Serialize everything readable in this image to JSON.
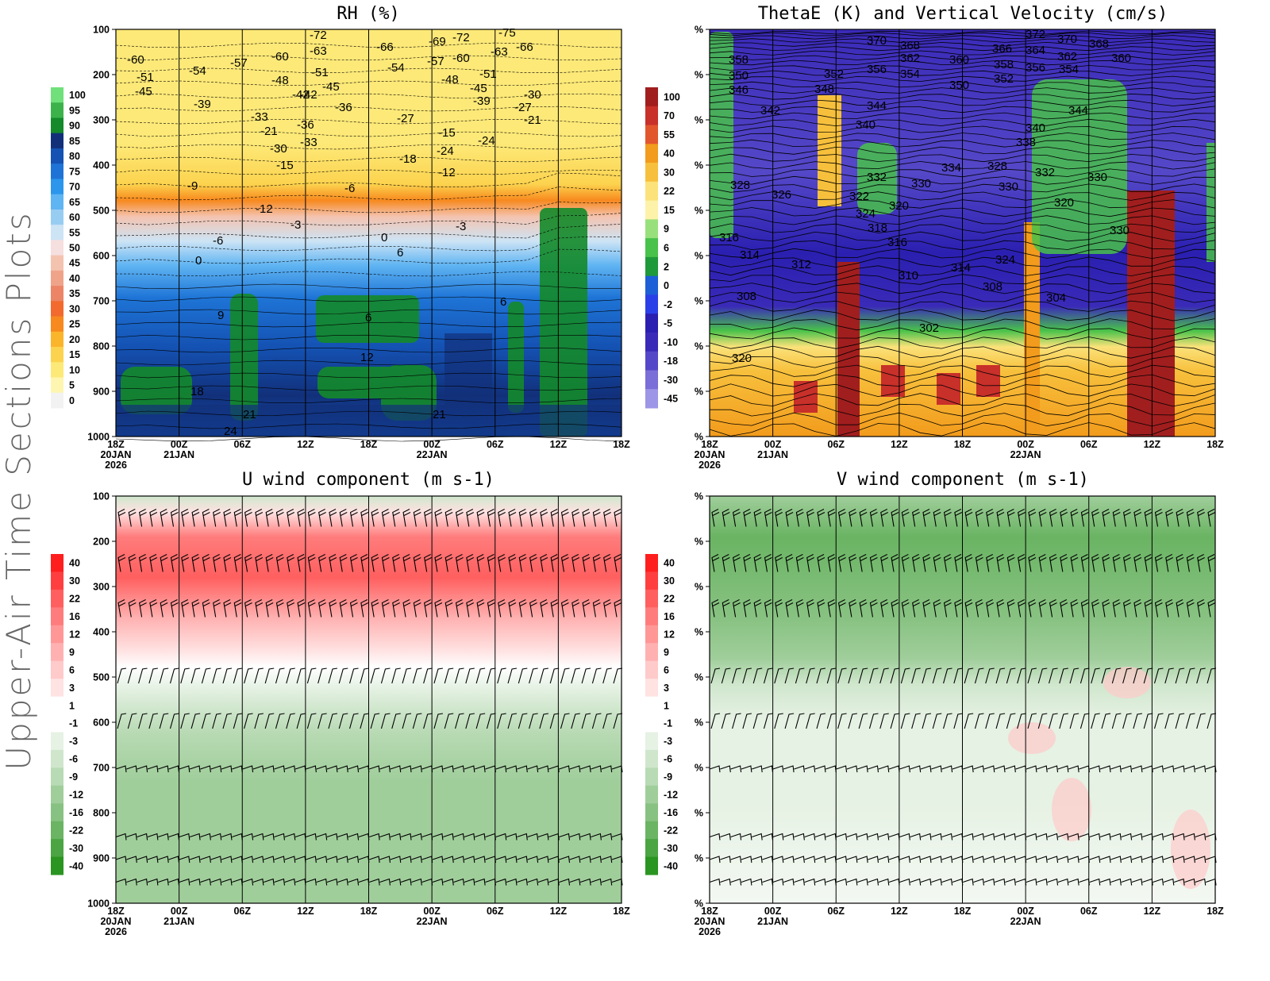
{
  "page": {
    "side_title": "Upper-Air Time Sections Plots"
  },
  "chart_data": [
    {
      "type": "heatmap",
      "title": "RH (%)",
      "xlabel": "",
      "ylabel": "",
      "x_ticks": [
        "18Z",
        "00Z",
        "06Z",
        "12Z",
        "18Z",
        "00Z",
        "06Z",
        "12Z",
        "18Z"
      ],
      "x_date_labels": [
        [
          "20JAN",
          "2026"
        ],
        [
          "21JAN"
        ],
        [],
        [],
        [],
        [
          "22JAN"
        ],
        [],
        [],
        []
      ],
      "y_ticks": [
        "100",
        "200",
        "300",
        "400",
        "500",
        "600",
        "700",
        "800",
        "900",
        "1000"
      ],
      "ylim": [
        100,
        1000
      ],
      "colorbar": [
        "100",
        "95",
        "90",
        "85",
        "80",
        "75",
        "70",
        "65",
        "60",
        "55",
        "50",
        "45",
        "40",
        "35",
        "30",
        "25",
        "20",
        "15",
        "10",
        "5",
        "0"
      ],
      "colorbar_colors": [
        "#6fe07a",
        "#3cb34a",
        "#148a2a",
        "#12307a",
        "#1452b3",
        "#1e74d6",
        "#2b96ec",
        "#5fb4f2",
        "#98cdf2",
        "#cde4f5",
        "#f6dfdf",
        "#f4c3b0",
        "#efa48a",
        "#eb8566",
        "#f26a2d",
        "#f7891e",
        "#fbb52b",
        "#fcd34e",
        "#fde978",
        "#fef6b0",
        "#f2f2f2"
      ],
      "contours": "Temperature (C)",
      "contour_labels": [
        "-60",
        "-51",
        "-45",
        "-54",
        "-57",
        "-60",
        "-48",
        "-72",
        "-63",
        "-51",
        "-45",
        "-42",
        "-66",
        "-54",
        "-69",
        "-57",
        "-72",
        "-60",
        "-75",
        "-63",
        "-66",
        "-48",
        "-51",
        "-45",
        "-39",
        "-42",
        "-36",
        "-30",
        "-39",
        "-33",
        "-27",
        "-21",
        "-15",
        "-30",
        "-24",
        "-36",
        "-33",
        "-27",
        "-21",
        "-24",
        "-18",
        "-15",
        "-12",
        "-9",
        "-12",
        "-6",
        "-3",
        "-6",
        "-3",
        "0",
        "0",
        "6",
        "9",
        "6",
        "6",
        "12",
        "18",
        "21",
        "24",
        "21"
      ]
    },
    {
      "type": "heatmap",
      "title": "ThetaE (K) and Vertical Velocity (cm/s)",
      "xlabel": "",
      "ylabel": "",
      "x_ticks": [
        "18Z",
        "00Z",
        "06Z",
        "12Z",
        "18Z",
        "00Z",
        "06Z",
        "12Z",
        "18Z"
      ],
      "x_date_labels": [
        [
          "20JAN",
          "2026"
        ],
        [
          "21JAN"
        ],
        [],
        [],
        [],
        [
          "22JAN"
        ],
        [],
        [],
        []
      ],
      "y_ticks": [
        "%",
        "%",
        "%",
        "%",
        "%",
        "%",
        "%",
        "%",
        "%",
        "%"
      ],
      "colorbar": [
        "100",
        "70",
        "55",
        "40",
        "30",
        "22",
        "15",
        "9",
        "6",
        "2",
        "0",
        "-2",
        "-5",
        "-10",
        "-18",
        "-30",
        "-45"
      ],
      "colorbar_colors": [
        "#a11e1e",
        "#c8302a",
        "#e2562e",
        "#f29b1c",
        "#f7c03c",
        "#fbe27a",
        "#fdf2a9",
        "#98e07c",
        "#48c24a",
        "#1e9a3a",
        "#1d5fd6",
        "#2b3fe8",
        "#2a1fb0",
        "#3a2ab8",
        "#5548c8",
        "#7a6ed8",
        "#9d95e6"
      ],
      "contours": "ThetaE (K)",
      "contour_labels": [
        "358",
        "350",
        "346",
        "370",
        "368",
        "362",
        "356",
        "354",
        "352",
        "348",
        "360",
        "366",
        "372",
        "364",
        "370",
        "362",
        "368",
        "360",
        "358",
        "356",
        "354",
        "352",
        "350",
        "342",
        "344",
        "340",
        "344",
        "340",
        "338",
        "334",
        "332",
        "330",
        "330",
        "328",
        "326",
        "322",
        "324",
        "320",
        "318",
        "316",
        "314",
        "312",
        "314",
        "310",
        "308",
        "308",
        "304",
        "302",
        "320",
        "316",
        "324",
        "320",
        "330",
        "332",
        "328",
        "330"
      ]
    },
    {
      "type": "heatmap",
      "title": "U wind component (m s-1)",
      "xlabel": "",
      "ylabel": "",
      "x_ticks": [
        "18Z",
        "00Z",
        "06Z",
        "12Z",
        "18Z",
        "00Z",
        "06Z",
        "12Z",
        "18Z"
      ],
      "x_date_labels": [
        [
          "20JAN",
          "2026"
        ],
        [
          "21JAN"
        ],
        [],
        [],
        [],
        [
          "22JAN"
        ],
        [],
        [],
        []
      ],
      "y_ticks": [
        "100",
        "200",
        "300",
        "400",
        "500",
        "600",
        "700",
        "800",
        "900",
        "1000"
      ],
      "ylim": [
        100,
        1000
      ],
      "colorbar": [
        "40",
        "30",
        "22",
        "16",
        "12",
        "9",
        "6",
        "3",
        "1",
        "-1",
        "-3",
        "-6",
        "-9",
        "-12",
        "-16",
        "-22",
        "-30",
        "-40"
      ],
      "colorbar_colors": [
        "#ff1e1e",
        "#ff3f3f",
        "#ff5f5f",
        "#ff7c7c",
        "#ff9797",
        "#ffb1b1",
        "#ffcaca",
        "#ffe2e2",
        "#ffffff",
        "#ffffff",
        "#e6f2e4",
        "#cfe6cc",
        "#b8dab4",
        "#a0ce9b",
        "#88c282",
        "#6ab463",
        "#4aa542",
        "#2a9520"
      ],
      "barb_levels": [
        150,
        250,
        350,
        500,
        600,
        700,
        850,
        900,
        950
      ],
      "dominant_flow": "westerly aloft, light easterly in lower levels"
    },
    {
      "type": "heatmap",
      "title": "V wind component (m s-1)",
      "xlabel": "",
      "ylabel": "",
      "x_ticks": [
        "18Z",
        "00Z",
        "06Z",
        "12Z",
        "18Z",
        "00Z",
        "06Z",
        "12Z",
        "18Z"
      ],
      "x_date_labels": [
        [
          "20JAN",
          "2026"
        ],
        [
          "21JAN"
        ],
        [],
        [],
        [],
        [
          "22JAN"
        ],
        [],
        [],
        []
      ],
      "y_ticks": [
        "%",
        "%",
        "%",
        "%",
        "%",
        "%",
        "%",
        "%",
        "%",
        "%"
      ],
      "colorbar": [
        "40",
        "30",
        "22",
        "16",
        "12",
        "9",
        "6",
        "3",
        "1",
        "-1",
        "-3",
        "-6",
        "-9",
        "-12",
        "-16",
        "-22",
        "-30",
        "-40"
      ],
      "colorbar_colors": [
        "#ff1e1e",
        "#ff3f3f",
        "#ff5f5f",
        "#ff7c7c",
        "#ff9797",
        "#ffb1b1",
        "#ffcaca",
        "#ffe2e2",
        "#ffffff",
        "#ffffff",
        "#e6f2e4",
        "#cfe6cc",
        "#b8dab4",
        "#a0ce9b",
        "#88c282",
        "#6ab463",
        "#4aa542",
        "#2a9520"
      ],
      "barb_levels": [
        150,
        250,
        350,
        500,
        600,
        700,
        850,
        900,
        950
      ],
      "dominant_flow": "northerly component aloft, near zero below 600 hPa"
    }
  ]
}
